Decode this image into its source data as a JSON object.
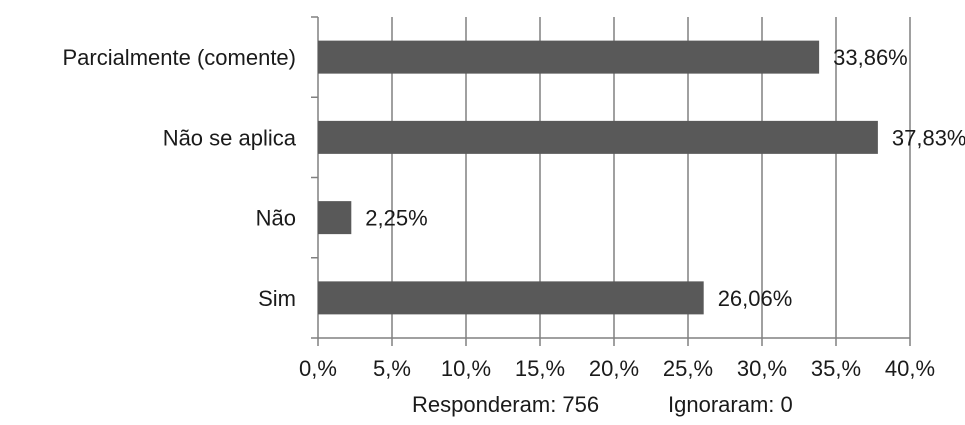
{
  "chart_data": {
    "type": "bar",
    "orientation": "horizontal",
    "categories": [
      "Parcialmente (comente)",
      "Não se aplica",
      "Não",
      "Sim"
    ],
    "values": [
      33.86,
      37.83,
      2.25,
      26.06
    ],
    "value_labels": [
      "33,86%",
      "37,83%",
      "2,25%",
      "26,06%"
    ],
    "xlim": [
      0,
      40
    ],
    "xticks": [
      0,
      5,
      10,
      15,
      20,
      25,
      30,
      35,
      40
    ],
    "xtick_labels": [
      "0,%",
      "5,%",
      "10,%",
      "15,%",
      "20,%",
      "25,%",
      "30,%",
      "35,%",
      "40,%"
    ],
    "grid": true,
    "bar_color": "#595959",
    "grid_color": "#808080",
    "footer": {
      "responded": "Responderam: 756",
      "ignored": "Ignoraram: 0"
    }
  }
}
